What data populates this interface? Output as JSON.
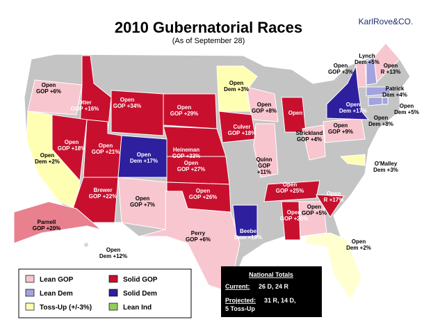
{
  "header": {
    "title": "2010 Gubernatorial Races",
    "subtitle": "(As of September 28)",
    "brand": "KarlRove&CO."
  },
  "map": {
    "type": "map",
    "base_color": "#c4c4c4",
    "races": [
      {
        "lines": [
          "Open",
          "GOP +6%"
        ],
        "color": "#f8c6cf"
      },
      {
        "lines": [
          "Otter",
          "GOP +16%"
        ],
        "color": "#c8102e"
      },
      {
        "lines": [
          "Open",
          "GOP +18%"
        ],
        "color": "#c8102e"
      },
      {
        "lines": [
          "Open",
          "Dem +2%"
        ],
        "color": "#ffffb4"
      },
      {
        "lines": [
          "Open",
          "GOP +21%"
        ],
        "color": "#c8102e"
      },
      {
        "lines": [
          "Open",
          "GOP +34%"
        ],
        "color": "#c8102e"
      },
      {
        "lines": [
          "Open",
          "GOP +29%"
        ],
        "color": "#c8102e"
      },
      {
        "lines": [
          "Heineman",
          "GOP +33%"
        ],
        "color": "#c8102e"
      },
      {
        "lines": [
          "Open",
          "Dem +17%"
        ],
        "color": "#2e1f9e"
      },
      {
        "lines": [
          "Open",
          "GOP +27%"
        ],
        "color": "#c8102e"
      },
      {
        "lines": [
          "Brewer",
          "GOP +22%"
        ],
        "color": "#c8102e"
      },
      {
        "lines": [
          "Open",
          "GOP +7%"
        ],
        "color": "#f8c6cf"
      },
      {
        "lines": [
          "Open",
          "GOP +26%"
        ],
        "color": "#c8102e"
      },
      {
        "lines": [
          "Perry",
          "GOP +6%"
        ],
        "color": "#f8c6cf"
      },
      {
        "lines": [
          "Open",
          "Dem +3%"
        ],
        "color": "#ffffb4"
      },
      {
        "lines": [
          "Open",
          "GOP +8%"
        ],
        "color": "#f8c6cf"
      },
      {
        "lines": [
          "Open"
        ],
        "color": "#c8102e"
      },
      {
        "lines": [
          "Culver",
          "GOP +18%"
        ],
        "color": "#c8102e"
      },
      {
        "lines": [
          "Quinn",
          "GOP",
          "+11%"
        ],
        "color": "#f8c6cf"
      },
      {
        "lines": [
          "Beebe",
          "Dem +19%"
        ],
        "color": "#2e1f9e"
      },
      {
        "lines": [
          "Open",
          "GOP +25%"
        ],
        "color": "#c8102e"
      },
      {
        "lines": [
          "Open",
          "GOP +20%"
        ],
        "color": "#c8102e"
      },
      {
        "lines": [
          "Open",
          "GOP +5%"
        ],
        "color": "#f8c6cf"
      },
      {
        "lines": [
          "Open",
          "R +17%"
        ],
        "color": "#c8102e"
      },
      {
        "lines": [
          "Strickland",
          "GOP +4%"
        ],
        "color": "#f8c6cf"
      },
      {
        "lines": [
          "Open",
          "GOP +9%"
        ],
        "color": "#f8c6cf"
      },
      {
        "lines": [
          "Open",
          "GOP +3%"
        ],
        "color": "#f8c6cf"
      },
      {
        "lines": [
          "Lynch",
          "Dem +5%"
        ],
        "color": "#a3a3e0"
      },
      {
        "lines": [
          "Open",
          "R +13%"
        ],
        "color": "#f8c6cf"
      },
      {
        "lines": [
          "Open",
          "Dem +17%"
        ],
        "color": "#2e1f9e"
      },
      {
        "lines": [
          "Patrick",
          "Dem +4%"
        ],
        "color": "#a3a3e0"
      },
      {
        "lines": [
          "Open",
          "Dem +5%"
        ],
        "color": "#a3a3e0"
      },
      {
        "lines": [
          "Open",
          "Dem +8%"
        ],
        "color": "#a3a3e0"
      },
      {
        "lines": [
          "O'Malley",
          "Dem +3%"
        ],
        "color": "#ffffb4"
      },
      {
        "lines": [
          "Open",
          "Dem +12%"
        ],
        "color": "#d8d8d8"
      },
      {
        "lines": [
          "Open",
          "Dem +2%"
        ],
        "color": "#ffffd0"
      },
      {
        "lines": [
          "Parnell",
          "GOP +20%"
        ],
        "color": "#e8808e"
      }
    ]
  },
  "legend": [
    {
      "name": "Lean GOP",
      "color": "#f8c6cf"
    },
    {
      "name": "Solid GOP",
      "color": "#c8102e"
    },
    {
      "name": "Lean Dem",
      "color": "#a3a3e0"
    },
    {
      "name": "Solid Dem",
      "color": "#2e1f9e"
    },
    {
      "name": "Toss-Up (+/-3%)",
      "color": "#ffffb4"
    },
    {
      "name": "Lean Ind",
      "color": "#8ccf5a"
    }
  ],
  "totals": {
    "title": "National Totals",
    "current_label": "Current:",
    "current": "26 D, 24 R",
    "projected_label": "Projected:",
    "projected": [
      "31 R, 14 D,",
      "5 Toss-Up"
    ]
  }
}
